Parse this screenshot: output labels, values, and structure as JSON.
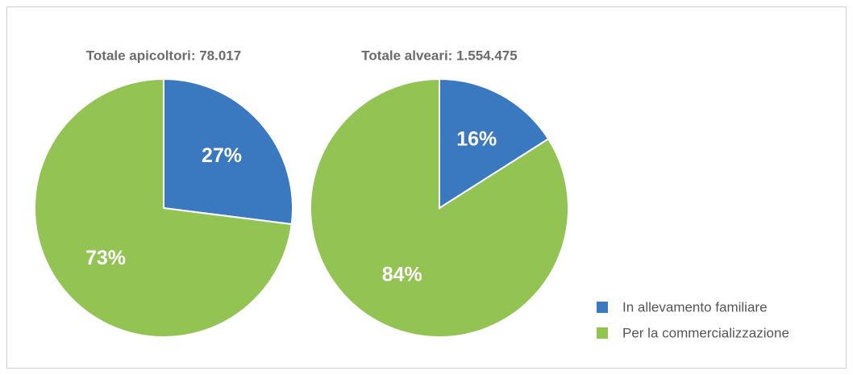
{
  "chart_data": [
    {
      "type": "pie",
      "title": "Totale apicoltori: 78.017",
      "values": [
        27,
        73
      ],
      "value_labels": [
        "27%",
        "73%"
      ]
    },
    {
      "type": "pie",
      "title": "Totale alveari: 1.554.475",
      "values": [
        16,
        84
      ],
      "value_labels": [
        "16%",
        "84%"
      ]
    }
  ],
  "legend": {
    "labels": [
      "In allevamento familiare",
      "Per la commercializzazione"
    ],
    "colors": [
      "#3a78bf",
      "#92c353"
    ]
  }
}
